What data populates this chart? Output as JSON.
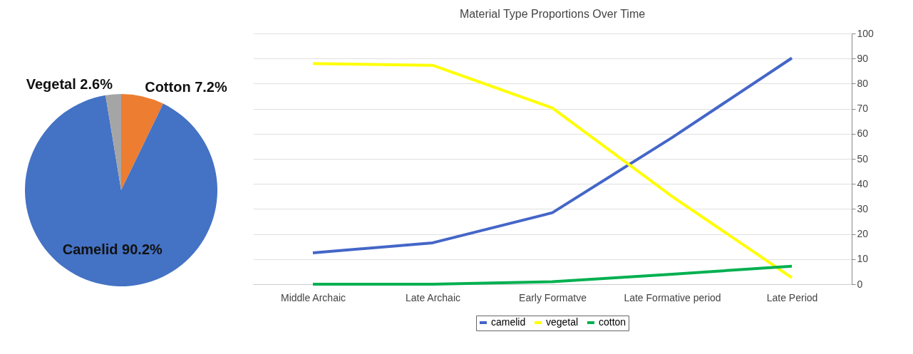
{
  "chart_data": [
    {
      "type": "pie",
      "categories": [
        "Cotton",
        "Camelid",
        "Vegetal"
      ],
      "values": [
        7.2,
        90.2,
        2.6
      ],
      "colors": [
        "#ed7d31",
        "#4472c4",
        "#a5a5a5"
      ],
      "value_labels": [
        "7.2%",
        "90.2%",
        "2.6%"
      ]
    },
    {
      "type": "line",
      "title": "Material Type Proportions Over Time",
      "categories": [
        "Middle Archaic",
        "Late Archaic",
        "Early Formatve",
        "Late Formative period",
        "Late Period"
      ],
      "series": [
        {
          "name": "camelid",
          "color": "#4466c8",
          "values": [
            12.5,
            16.5,
            28.5,
            58.5,
            90.2
          ]
        },
        {
          "name": "vegetal",
          "color": "#ffff00",
          "values": [
            88,
            87.3,
            70.3,
            35,
            2.6
          ]
        },
        {
          "name": "cotton",
          "color": "#00b050",
          "values": [
            0,
            0,
            1,
            4,
            7.2
          ]
        }
      ],
      "ylim": [
        0,
        100
      ],
      "yticks": [
        0,
        10,
        20,
        30,
        40,
        50,
        60,
        70,
        80,
        90,
        100
      ],
      "grid": "y",
      "legend": "bottom",
      "marker": "none",
      "line_style": "solid"
    }
  ]
}
